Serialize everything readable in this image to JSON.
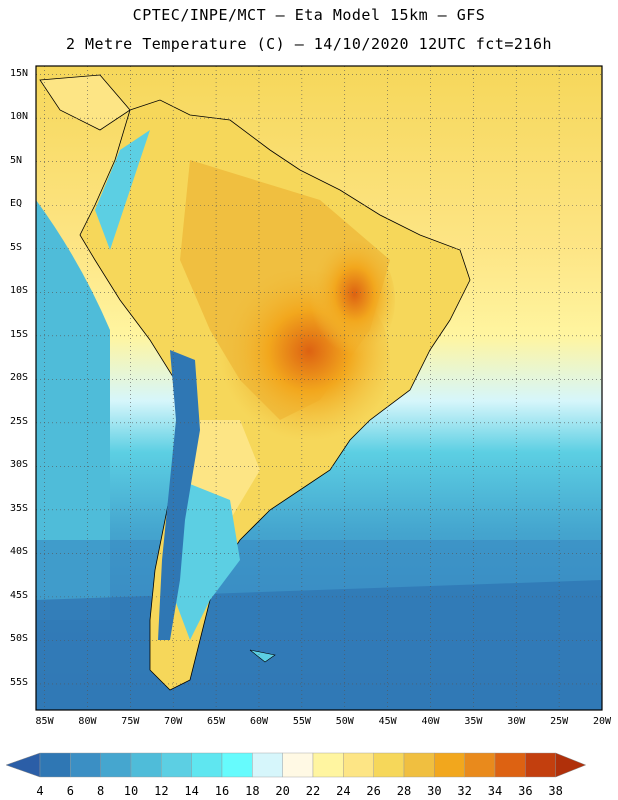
{
  "title": {
    "line1": "CPTEC/INPE/MCT —  Eta Model 15km — GFS",
    "line2": "2 Metre Temperature (C) — 14/10/2020 12UTC fct=216h"
  },
  "map": {
    "lat_labels": [
      "15N",
      "10N",
      "5N",
      "EQ",
      "5S",
      "10S",
      "15S",
      "20S",
      "25S",
      "30S",
      "35S",
      "40S",
      "45S",
      "50S",
      "55S"
    ],
    "lat_values": [
      15,
      10,
      5,
      0,
      -5,
      -10,
      -15,
      -20,
      -25,
      -30,
      -35,
      -40,
      -45,
      -50,
      -55
    ],
    "lon_labels": [
      "85W",
      "80W",
      "75W",
      "70W",
      "65W",
      "60W",
      "55W",
      "50W",
      "45W",
      "40W",
      "35W",
      "30W",
      "25W",
      "20W"
    ],
    "lon_values": [
      -85,
      -80,
      -75,
      -70,
      -65,
      -60,
      -55,
      -50,
      -45,
      -40,
      -35,
      -30,
      -25,
      -20
    ],
    "extent": {
      "lon_min": -86,
      "lon_max": -20,
      "lat_min": -58,
      "lat_max": 16
    }
  },
  "colorbar": {
    "labels": [
      "4",
      "6",
      "8",
      "10",
      "12",
      "14",
      "16",
      "18",
      "20",
      "22",
      "24",
      "26",
      "28",
      "30",
      "32",
      "34",
      "36",
      "38"
    ],
    "colors": [
      "#2b5ea7",
      "#2f77b4",
      "#3b8fc4",
      "#45a6cf",
      "#4fbcd9",
      "#5ccfe3",
      "#5fe6f0",
      "#66fbfd",
      "#d6f6fb",
      "#fff9e4",
      "#fff5a0",
      "#fde585",
      "#f6d75a",
      "#f0bf40",
      "#f2a71d",
      "#e98a1c",
      "#dd6212",
      "#c33f0e",
      "#b0300a"
    ]
  }
}
